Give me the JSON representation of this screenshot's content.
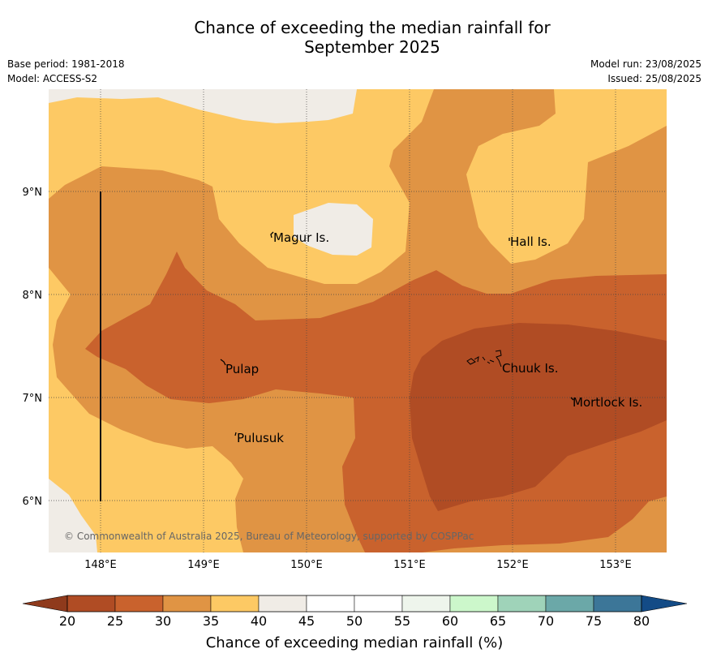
{
  "title_line1": "Chance of exceeding the median rainfall for",
  "title_line2": "September 2025",
  "meta_left": [
    "Base period: 1981-2018",
    "Model: ACCESS-S2"
  ],
  "meta_right": [
    "Model run: 23/08/2025",
    "Issued: 25/08/2025"
  ],
  "map": {
    "lon_ticks": [
      "148°E",
      "149°E",
      "150°E",
      "151°E",
      "152°E",
      "153°E"
    ],
    "lat_ticks": [
      "9°N",
      "8°N",
      "7°N",
      "6°N"
    ],
    "places": [
      {
        "name": "Magur Is."
      },
      {
        "name": "Hall Is."
      },
      {
        "name": "Pulap"
      },
      {
        "name": "Chuuk Is."
      },
      {
        "name": "Mortlock Is."
      },
      {
        "name": "Pulusuk"
      }
    ],
    "copyright": "© Commonwealth of Australia 2025, Bureau of Meteorology, supported by COSPPac"
  },
  "colorbar": {
    "title": "Chance of exceeding median rainfall (%)",
    "ticks": [
      "20",
      "25",
      "30",
      "35",
      "40",
      "45",
      "50",
      "55",
      "60",
      "65",
      "70",
      "75",
      "80"
    ],
    "colors": [
      "#b04c24",
      "#c9622d",
      "#e09444",
      "#fdc964",
      "#f0ece6",
      "#ffffff",
      "#ffffff",
      "#eef5ec",
      "#ccf7cb",
      "#9fd3b9",
      "#6ba8a8",
      "#3c7698"
    ],
    "low_color": "#8f3a1c",
    "high_color": "#134b86"
  },
  "category_colors": {
    "20-25": "#b04c24",
    "25-30": "#c9622d",
    "30-35": "#e09444",
    "35-40": "#fdc964",
    "40-45": "#f0ece6"
  }
}
